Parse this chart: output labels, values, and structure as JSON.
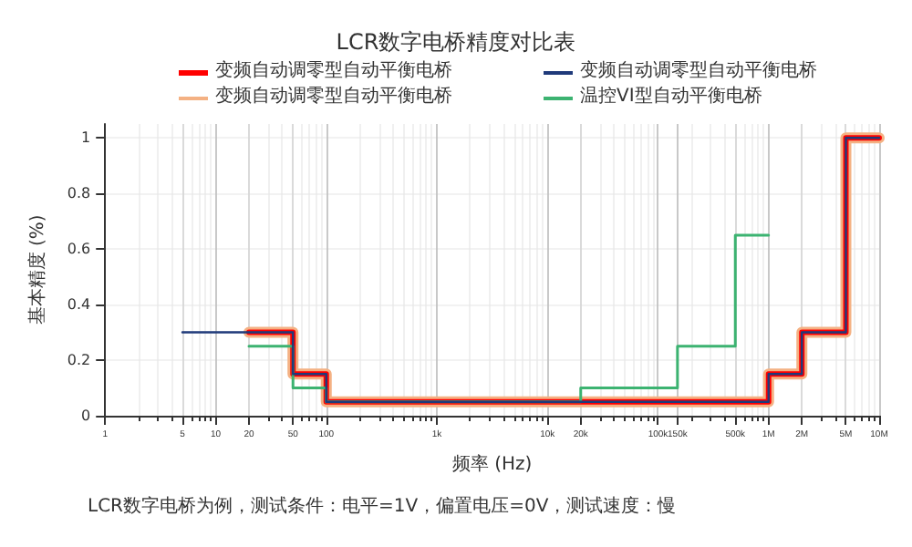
{
  "chart_data": {
    "type": "step",
    "title": "LCR数字电桥精度对比表",
    "xlabel": "频率 (Hz)",
    "ylabel": "基本精度 (%)",
    "annotations": [
      "LCR数字电桥为例，测试条件：电平=1V，偏置电压=0V，测试速度：慢"
    ],
    "series": [
      {
        "name": "变频自动调零型自动平衡电桥",
        "color": "#ff0000",
        "x": [
          20,
          50,
          100,
          1000000,
          2000000,
          5000000,
          10000000
        ],
        "values": [
          0.3,
          0.15,
          0.05,
          0.15,
          0.3,
          1,
          1
        ]
      },
      {
        "name": "变频自动调零型自动平衡电桥",
        "color": "#1f3a7a",
        "x": [
          5,
          50,
          100,
          1000000,
          2000000,
          5000000,
          10000000
        ],
        "values": [
          0.3,
          0.15,
          0.05,
          0.15,
          0.3,
          1,
          1
        ]
      },
      {
        "name": "变频自动调零型自动平衡电桥",
        "color": "#f4b183",
        "x": [
          20,
          50,
          100,
          1000000,
          2000000,
          5000000,
          10000000
        ],
        "values": [
          0.3,
          0.15,
          0.05,
          0.15,
          0.3,
          1,
          1
        ]
      },
      {
        "name": "温控VI型自动平衡电桥",
        "color": "#3cb371",
        "x": [
          20,
          50,
          100,
          20000,
          150000,
          500000,
          1000000
        ],
        "values": [
          0.25,
          0.1,
          0.05,
          0.1,
          0.25,
          0.65,
          0.65
        ]
      }
    ],
    "log": "x",
    "xlim": [
      1,
      10000000
    ],
    "xticks": [
      1,
      5,
      10,
      20,
      50,
      100,
      {
        "value": 1000,
        "label": "1k"
      },
      {
        "value": 10000,
        "label": "10k"
      },
      {
        "value": 20000,
        "label": "20k"
      },
      {
        "value": 100000,
        "label": "100k"
      },
      {
        "value": 150000,
        "label": "150k"
      },
      {
        "value": 500000,
        "label": "500k"
      },
      {
        "value": 1000000,
        "label": "1M"
      },
      {
        "value": 2000000,
        "label": "2M"
      },
      {
        "value": 5000000,
        "label": "5M"
      },
      {
        "value": 10000000,
        "label": "10M"
      }
    ],
    "ylim": [
      0,
      1.05
    ],
    "yticks": [
      0,
      0.2,
      0.4,
      0.6,
      0.8,
      1
    ],
    "grid": true,
    "legend": "top",
    "line_style": "solid",
    "marker": "none"
  }
}
